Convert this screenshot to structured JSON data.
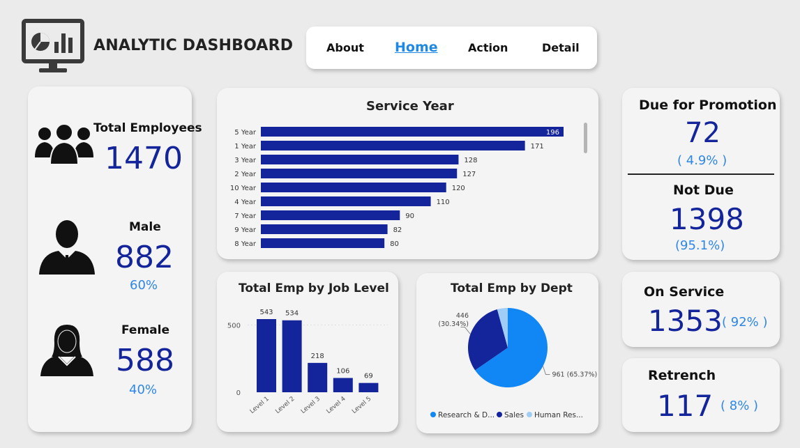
{
  "header": {
    "title": "ANALYTIC DASHBOARD",
    "logo_icon": "dashboard-monitor-icon"
  },
  "nav": {
    "items": [
      {
        "label": "About"
      },
      {
        "label": "Home",
        "active": true
      },
      {
        "label": "Action"
      },
      {
        "label": "Detail"
      }
    ]
  },
  "employees": {
    "total_label": "Total Employees",
    "total_value": "1470",
    "male_label": "Male",
    "male_value": "882",
    "male_pct": "60%",
    "female_label": "Female",
    "female_value": "588",
    "female_pct": "40%"
  },
  "promotion": {
    "due_label": "Due for Promotion",
    "due_value": "72",
    "due_pct": "( 4.9% )",
    "notdue_label": "Not Due",
    "notdue_value": "1398",
    "notdue_pct": "(95.1%)"
  },
  "service": {
    "label": "On Service",
    "value": "1353",
    "pct": "( 92% )"
  },
  "retrench": {
    "label": "Retrench",
    "value": "117",
    "pct": "( 8% )"
  },
  "colors": {
    "navy": "#14249a",
    "accent_blue": "#2e86e6",
    "pie_research": "#1187f5",
    "pie_sales": "#14249a",
    "pie_hr": "#9fcdf6"
  },
  "chart_data": [
    {
      "id": "service_year",
      "type": "bar",
      "orientation": "horizontal",
      "title": "Service Year",
      "categories": [
        "5 Year",
        "1 Year",
        "3 Year",
        "2 Year",
        "10 Year",
        "4 Year",
        "7 Year",
        "9 Year",
        "8 Year"
      ],
      "values": [
        196,
        171,
        128,
        127,
        120,
        110,
        90,
        82,
        80
      ],
      "xlim": [
        0,
        196
      ]
    },
    {
      "id": "job_level",
      "type": "bar",
      "title": "Total Emp by Job Level",
      "categories": [
        "Level 1",
        "Level 2",
        "Level 3",
        "Level 4",
        "Level 5"
      ],
      "values": [
        543,
        534,
        218,
        106,
        69
      ],
      "yticks": [
        0,
        500
      ],
      "ylim": [
        0,
        543
      ]
    },
    {
      "id": "dept",
      "type": "pie",
      "title": "Total Emp by Dept",
      "slices": [
        {
          "name": "Research & D...",
          "value": 961,
          "label": "961 (65.37%)"
        },
        {
          "name": "Sales",
          "value": 446,
          "label": "446 (30.34%)"
        },
        {
          "name": "Human Res...",
          "value": 63,
          "label": ""
        }
      ],
      "legend": "bottom"
    }
  ]
}
